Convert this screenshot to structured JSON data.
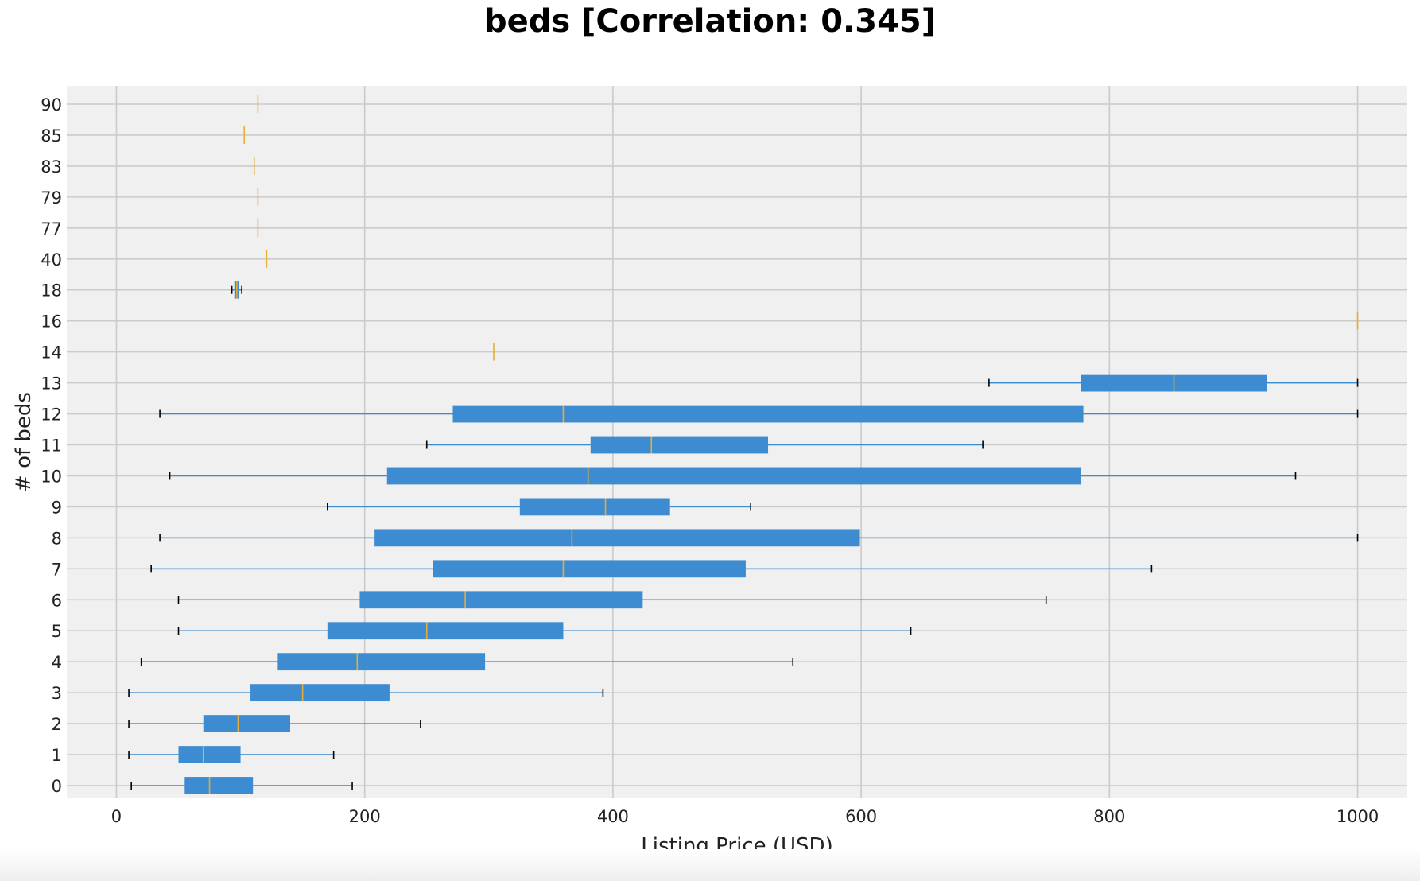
{
  "chart_data": {
    "type": "boxplot",
    "orientation": "horizontal",
    "title": "beds [Correlation: 0.345]",
    "xlabel": "Listing Price (USD)",
    "ylabel": "# of beds",
    "xlim": [
      -40,
      1040
    ],
    "xticks": [
      0,
      200,
      400,
      600,
      800,
      1000
    ],
    "grid": true,
    "colors": {
      "box": "#3d8bd0",
      "median": "#e5ae38",
      "whisker": "#3d8bd0",
      "cap": "#000000",
      "background": "#f0f0f0",
      "grid": "#cbcbcb"
    },
    "categories": [
      "0",
      "1",
      "2",
      "3",
      "4",
      "5",
      "6",
      "7",
      "8",
      "9",
      "10",
      "11",
      "12",
      "13",
      "14",
      "16",
      "18",
      "40",
      "77",
      "79",
      "83",
      "85",
      "90"
    ],
    "boxes": [
      {
        "label": "0",
        "whislo": 12,
        "q1": 55,
        "med": 75,
        "q3": 110,
        "whishi": 190
      },
      {
        "label": "1",
        "whislo": 10,
        "q1": 50,
        "med": 70,
        "q3": 100,
        "whishi": 175
      },
      {
        "label": "2",
        "whislo": 10,
        "q1": 70,
        "med": 98,
        "q3": 140,
        "whishi": 245
      },
      {
        "label": "3",
        "whislo": 10,
        "q1": 108,
        "med": 150,
        "q3": 220,
        "whishi": 392
      },
      {
        "label": "4",
        "whislo": 20,
        "q1": 130,
        "med": 194,
        "q3": 297,
        "whishi": 545
      },
      {
        "label": "5",
        "whislo": 50,
        "q1": 170,
        "med": 250,
        "q3": 360,
        "whishi": 640
      },
      {
        "label": "6",
        "whislo": 50,
        "q1": 196,
        "med": 281,
        "q3": 424,
        "whishi": 749
      },
      {
        "label": "7",
        "whislo": 28,
        "q1": 255,
        "med": 360,
        "q3": 507,
        "whishi": 834
      },
      {
        "label": "8",
        "whislo": 35,
        "q1": 208,
        "med": 367,
        "q3": 599,
        "whishi": 1000
      },
      {
        "label": "9",
        "whislo": 170,
        "q1": 325,
        "med": 394,
        "q3": 446,
        "whishi": 511
      },
      {
        "label": "10",
        "whislo": 43,
        "q1": 218,
        "med": 380,
        "q3": 777,
        "whishi": 950
      },
      {
        "label": "11",
        "whislo": 250,
        "q1": 382,
        "med": 431,
        "q3": 525,
        "whishi": 698
      },
      {
        "label": "12",
        "whislo": 35,
        "q1": 271,
        "med": 360,
        "q3": 779,
        "whishi": 1000
      },
      {
        "label": "13",
        "whislo": 703,
        "q1": 777,
        "med": 852,
        "q3": 927,
        "whishi": 1000
      },
      {
        "label": "14",
        "whislo": 304,
        "q1": 304,
        "med": 304,
        "q3": 304,
        "whishi": 304
      },
      {
        "label": "16",
        "whislo": 1000,
        "q1": 1000,
        "med": 1000,
        "q3": 1000,
        "whishi": 1000
      },
      {
        "label": "18",
        "whislo": 93,
        "q1": 95,
        "med": 97,
        "q3": 99,
        "whishi": 101
      },
      {
        "label": "40",
        "whislo": 121,
        "q1": 121,
        "med": 121,
        "q3": 121,
        "whishi": 121
      },
      {
        "label": "77",
        "whislo": 114,
        "q1": 114,
        "med": 114,
        "q3": 114,
        "whishi": 114
      },
      {
        "label": "79",
        "whislo": 114,
        "q1": 114,
        "med": 114,
        "q3": 114,
        "whishi": 114
      },
      {
        "label": "83",
        "whislo": 111,
        "q1": 111,
        "med": 111,
        "q3": 111,
        "whishi": 111
      },
      {
        "label": "85",
        "whislo": 103,
        "q1": 103,
        "med": 103,
        "q3": 103,
        "whishi": 103
      },
      {
        "label": "90",
        "whislo": 114,
        "q1": 114,
        "med": 114,
        "q3": 114,
        "whishi": 114
      }
    ]
  }
}
